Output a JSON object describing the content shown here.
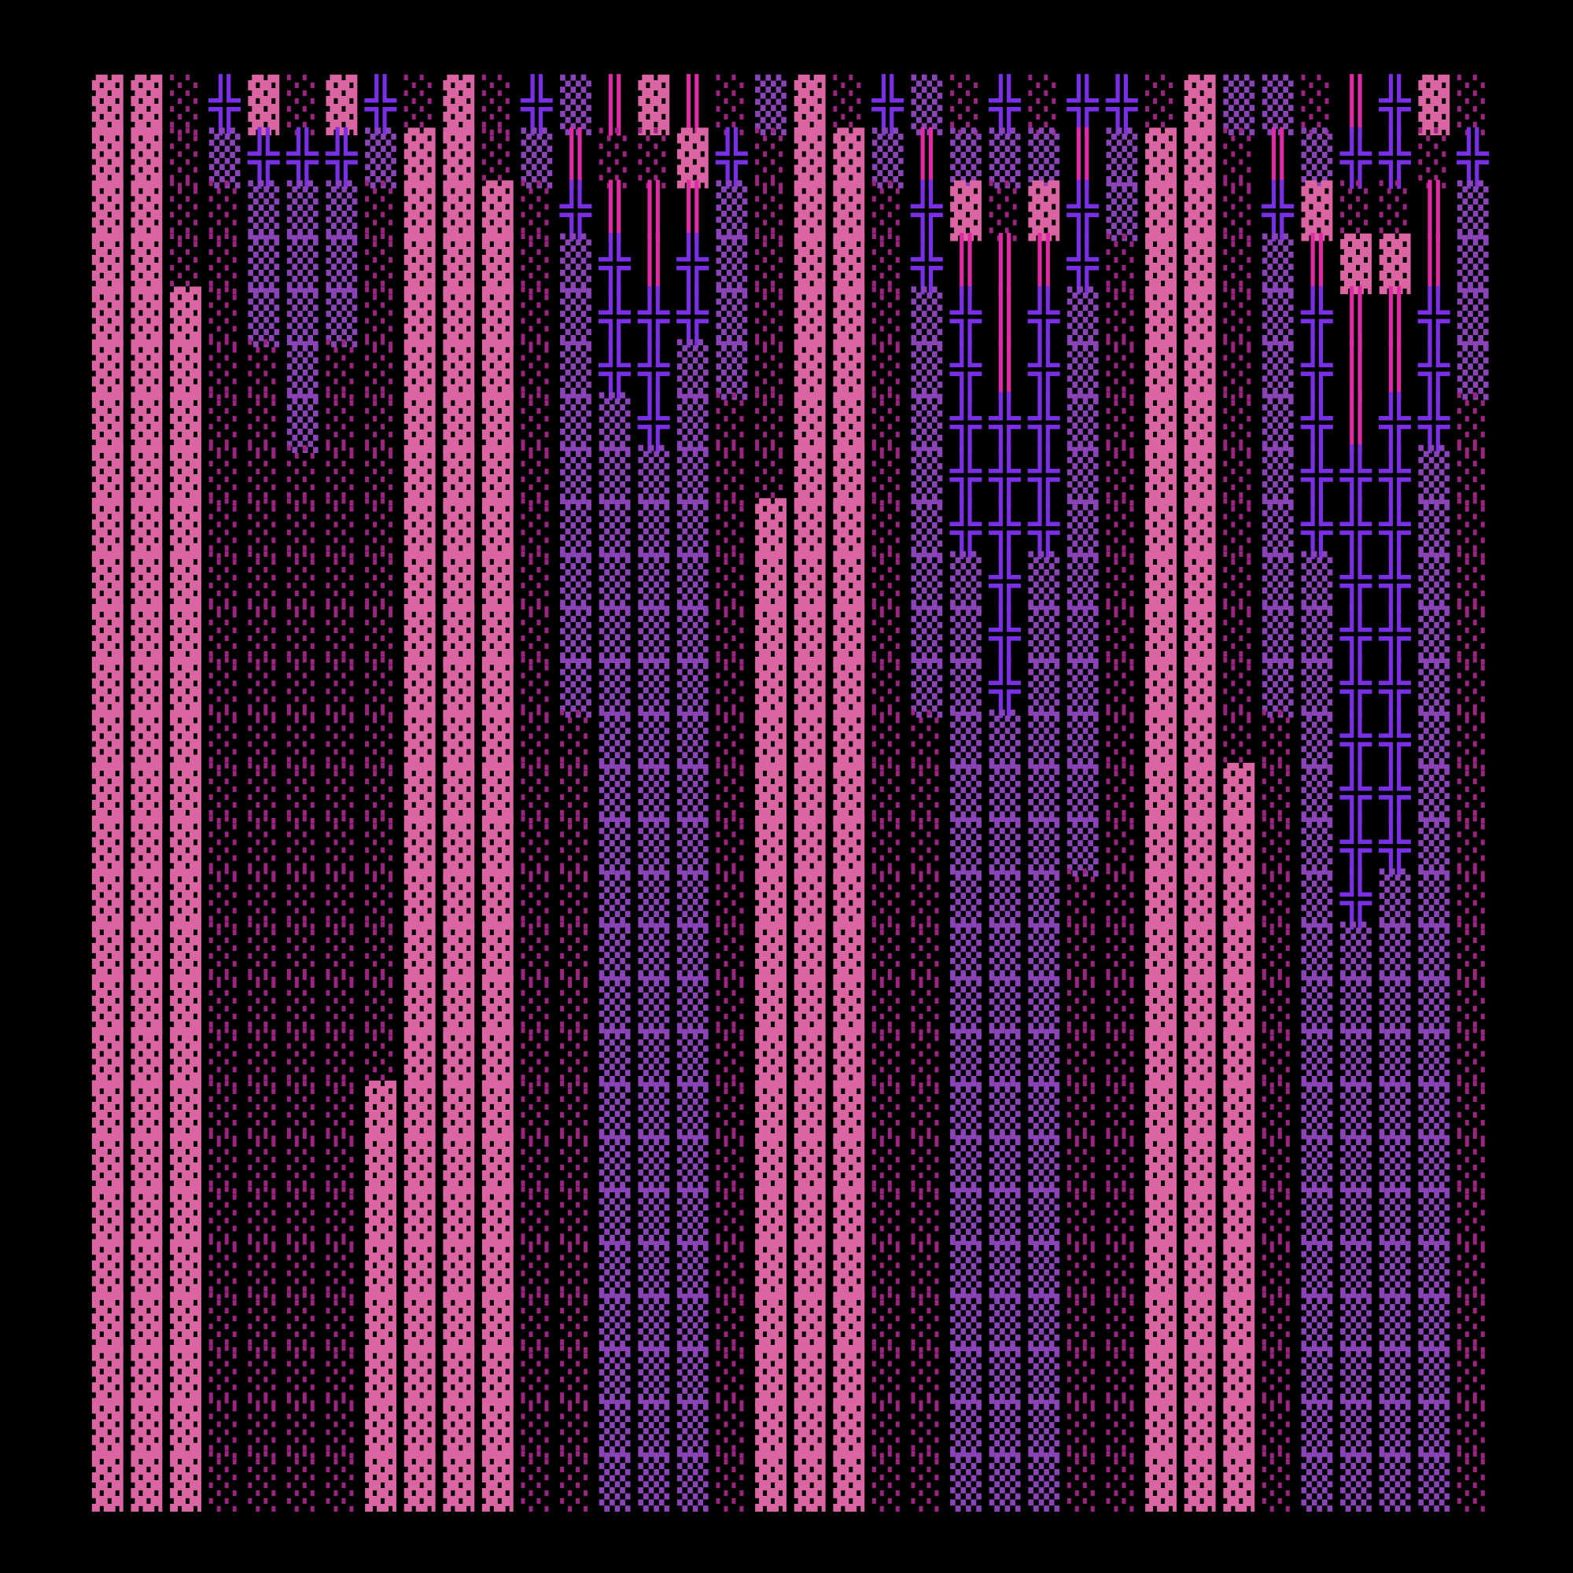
{
  "grid": {
    "colors": {
      "▓": "#db64a3",
      "▒": "#8a44b8",
      "░": "#9a2480",
      "╬": "#7a2ee6",
      "║": "#e22aa6"
    },
    "background": "#000000",
    "rows": [
      "▓▓░╬▓░▓╬░▓░╬▒║▓║░▒▓░╬▒░╬░╬╬░▓▒▒░║╬▓░",
      "▓▓░▒╬╬╬▒▓▓░▒║░░▓╬░▓▓▒║▒▒▒║▒▓▓░║▒╬╬░╬",
      "▓▓░░▒▒▒░▓▓▓░╬║║║▒░▓▓░╬▓░▓╬▒▓▓░╬▓░░║▒",
      "▓▓░░▒▒▒░▓▓▓░▒╬║╬▒░▓▓░╬║║║╬░▓▓░▒║▓▓║▒",
      "▓▓▓░▒▒▒░▓▓▓░▒╬╬╬▒░▓▓░▒╬║╬▒░▓▓░▒╬║║╬▒",
      "▓▓▓░░▒░░▓▓▓░▒╬╬▒▒░▓▓░▒╬║╬▒░▓▓░▒╬║║╬▒",
      "▓▓▓░░▒░░▓▓▓░▒▒╬▒░░▓▓░▒╬╬╬▒░▓▓░▒╬║╬╬░",
      "▓▓▓░░░░░▓▓▓░▒▒▒▒░░▓▓░▒╬╬╬▒░▓▓░▒╬╬╬▒░",
      "▓▓▓░░░░░▓▓▓░▒▒▒▒░▓▓▓░▒╬╬╬▒░▓▓░▒╬╬╬▒░",
      "▓▓▓░░░░░▓▓▓░▒▒▒▒░▓▓▓░▒▒╬▒▒░▓▓░▒▒╬╬▒░",
      "▓▓▓░░░░░▓▓▓░▒▒▒▒░▓▓▓░▒▒╬▒▒░▓▓░▒▒╬╬▒░",
      "▓▓▓░░░░░▓▓▓░▒▒▒▒░▓▓▓░▒▒╬▒▒░▓▓░▒▒╬╬▒░",
      "▓▓▓░░░░░▓▓▓░░▒▒▒░▓▓▓░░▒▒▒▒░▓▓░░▒╬╬▒░",
      "▓▓▓░░░░░▓▓▓░░▒▒▒░▓▓▓░░▒▒▒▒░▓▓▓░▒╬╬▒░",
      "▓▓▓░░░░░▓▓▓░░▒▒▒░▓▓▓░░▒▒▒▒░▓▓▓░▒╬╬▒░",
      "▓▓▓░░░░░▓▓▓░░▒▒▒░▓▓▓░░▒▒▒░░▓▓▓░▒╬▒▒░",
      "▓▓▓░░░░░▓▓▓░░▒▒▒░▓▓▓░░▒▒▒░░▓▓▓░▒▒▒▒░",
      "▓▓▓░░░░░▓▓▓░░▒▒▒░▓▓▓░░▒▒▒░░▓▓▓░▒▒▒▒░",
      "▓▓▓░░░░░▓▓▓░░▒▒▒░▓▓▓░░▒▒▒░░▓▓▓░▒▒▒▒░",
      "▓▓▓░░░░▓▓▓▓░░▒▒▒░▓▓▓░░▒▒▒░░▓▓▓░▒▒▒▒░",
      "▓▓▓░░░░▓▓▓▓░░▒▒▒░▓▓▓░░▒▒▒░░▓▓▓░▒▒▒▒░",
      "▓▓▓░░░░▓▓▓▓░░▒▒▒░▓▓▓░░▒▒▒░░▓▓▓░▒▒▒▒░",
      "▓▓▓░░░░▓▓▓▓░░▒▒▒░▓▓▓░░▒▒▒░░▓▓▓░▒▒▒▒░",
      "▓▓▓░░░░▓▓▓▓░░▒▒▒░▓▓▓░░▒▒▒░░▓▓▓░▒▒▒▒░",
      "▓▓▓░░░░▓▓▓▓░░▒▒▒░▓▓▓░░▒▒▒░░▓▓▓░▒▒▒▒░",
      "▓▓▓░░░░▓▓▓▓░░▒▒▒░▓▓▓░░▒▒▒░░▓▓▓░▒▒▒▒░",
      "▓▓▓░░░░▓▓▓▓░░▒▒▒░▓▓▓░░▒▒▒░░▓▓▓░▒▒▒▒░"
    ]
  }
}
